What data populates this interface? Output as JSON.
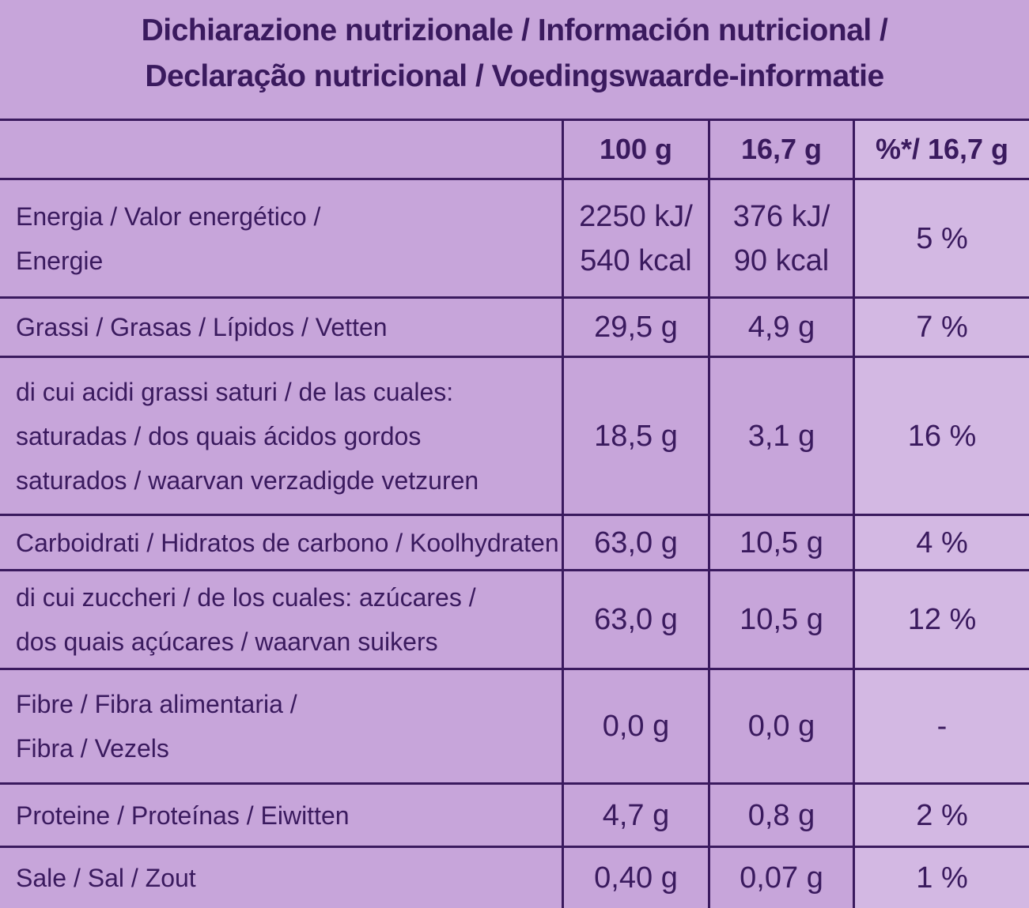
{
  "title": [
    "Dichiarazione nutrizionale / Información nutricional /",
    "Declaração nutricional / Voedingswaarde-informatie"
  ],
  "table": {
    "header": [
      "100 g",
      "16,7 g",
      "%*/ 16,7 g"
    ],
    "rows": [
      [
        [
          "Energia / Valor energético /",
          "Energie"
        ],
        [
          "2250 kJ/",
          "540 kcal"
        ],
        [
          "376 kJ/",
          "90 kcal"
        ],
        [
          "5 %"
        ]
      ],
      [
        [
          "Grassi / Grasas / Lípidos / Vetten"
        ],
        [
          "29,5 g"
        ],
        [
          "4,9 g"
        ],
        [
          "7 %"
        ]
      ],
      [
        [
          "di cui acidi grassi saturi / de las cuales:",
          "saturadas / dos quais ácidos gordos",
          "saturados / waarvan verzadigde vetzuren"
        ],
        [
          "18,5 g"
        ],
        [
          "3,1 g"
        ],
        [
          "16 %"
        ]
      ],
      [
        [
          "Carboidrati / Hidratos de carbono / Koolhydraten"
        ],
        [
          "63,0 g"
        ],
        [
          "10,5 g"
        ],
        [
          "4 %"
        ]
      ],
      [
        [
          "di cui zuccheri / de los cuales: azúcares /",
          "dos quais açúcares / waarvan suikers"
        ],
        [
          "63,0 g"
        ],
        [
          "10,5 g"
        ],
        [
          "12 %"
        ]
      ],
      [
        [
          "Fibre / Fibra alimentaria /",
          "Fibra / Vezels"
        ],
        [
          "0,0 g"
        ],
        [
          "0,0 g"
        ],
        [
          "-"
        ]
      ],
      [
        [
          "Proteine / Proteínas / Eiwitten"
        ],
        [
          "4,7 g"
        ],
        [
          "0,8 g"
        ],
        [
          "2 %"
        ]
      ],
      [
        [
          "Sale / Sal / Zout"
        ],
        [
          "0,40 g"
        ],
        [
          "0,07 g"
        ],
        [
          "1 %"
        ]
      ]
    ]
  }
}
